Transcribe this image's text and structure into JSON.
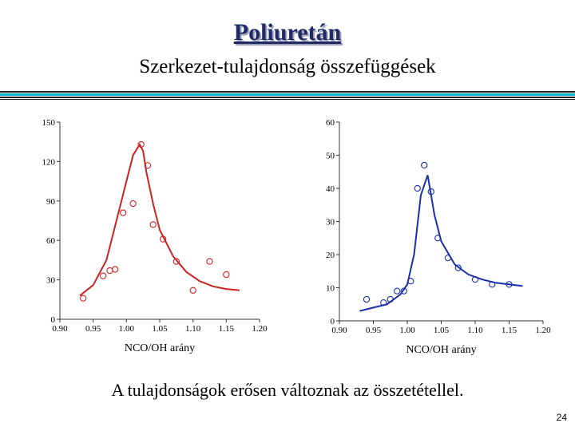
{
  "slide": {
    "title": "Poliuretán",
    "subtitle": "Szerkezet-tulajdonság összefüggések",
    "caption": "A tulajdonságok erősen változnak az összetétellel.",
    "page_number": "24"
  },
  "colors": {
    "accent": "#00b0d0",
    "title": "#1f2a66",
    "left_series": "#cc2222",
    "right_series": "#1a2fa8"
  },
  "chart_data": [
    {
      "type": "scatter",
      "xlabel": "NCO/OH arány",
      "ylabel": "",
      "xlim": [
        0.9,
        1.2
      ],
      "ylim": [
        0,
        150
      ],
      "xticks": [
        "0.90",
        "0.95",
        "1.00",
        "1.05",
        "1.10",
        "1.15",
        "1.20"
      ],
      "yticks": [
        "0",
        "30",
        "60",
        "90",
        "120",
        "150"
      ],
      "grid": false,
      "series": [
        {
          "points": [
            [
              0.935,
              16
            ],
            [
              0.965,
              33
            ],
            [
              0.975,
              37
            ],
            [
              0.983,
              38
            ],
            [
              0.995,
              81
            ],
            [
              1.01,
              88
            ],
            [
              1.022,
              133
            ],
            [
              1.032,
              117
            ],
            [
              1.04,
              72
            ],
            [
              1.055,
              61
            ],
            [
              1.075,
              44
            ],
            [
              1.1,
              22
            ],
            [
              1.125,
              44
            ],
            [
              1.15,
              34
            ]
          ],
          "fit": [
            [
              0.93,
              18
            ],
            [
              0.95,
              26
            ],
            [
              0.97,
              45
            ],
            [
              0.99,
              85
            ],
            [
              1.0,
              105
            ],
            [
              1.01,
              125
            ],
            [
              1.02,
              133
            ],
            [
              1.025,
              128
            ],
            [
              1.03,
              112
            ],
            [
              1.04,
              88
            ],
            [
              1.05,
              68
            ],
            [
              1.07,
              48
            ],
            [
              1.09,
              36
            ],
            [
              1.11,
              29
            ],
            [
              1.13,
              25
            ],
            [
              1.15,
              23
            ],
            [
              1.17,
              22
            ]
          ]
        }
      ]
    },
    {
      "type": "scatter",
      "xlabel": "NCO/OH arány",
      "ylabel": "",
      "xlim": [
        0.9,
        1.2
      ],
      "ylim": [
        0,
        60
      ],
      "xticks": [
        "0.90",
        "0.95",
        "1.00",
        "1.05",
        "1.10",
        "1.15",
        "1.20"
      ],
      "yticks": [
        "0",
        "10",
        "20",
        "30",
        "40",
        "50",
        "60"
      ],
      "grid": false,
      "series": [
        {
          "points": [
            [
              0.94,
              6.5
            ],
            [
              0.965,
              5.5
            ],
            [
              0.975,
              6.5
            ],
            [
              0.985,
              9.0
            ],
            [
              0.995,
              9.0
            ],
            [
              1.005,
              12
            ],
            [
              1.015,
              40
            ],
            [
              1.025,
              47
            ],
            [
              1.035,
              39
            ],
            [
              1.045,
              25
            ],
            [
              1.06,
              19
            ],
            [
              1.075,
              16
            ],
            [
              1.1,
              12.5
            ],
            [
              1.125,
              11
            ],
            [
              1.15,
              11
            ]
          ],
          "fit": [
            [
              0.93,
              3
            ],
            [
              0.95,
              4
            ],
            [
              0.97,
              5
            ],
            [
              0.99,
              8
            ],
            [
              1.0,
              11
            ],
            [
              1.01,
              20
            ],
            [
              1.02,
              38
            ],
            [
              1.03,
              44
            ],
            [
              1.04,
              32
            ],
            [
              1.05,
              24
            ],
            [
              1.07,
              17
            ],
            [
              1.09,
              14
            ],
            [
              1.11,
              12.5
            ],
            [
              1.13,
              11.5
            ],
            [
              1.15,
              11
            ],
            [
              1.17,
              10.5
            ]
          ]
        }
      ]
    }
  ]
}
